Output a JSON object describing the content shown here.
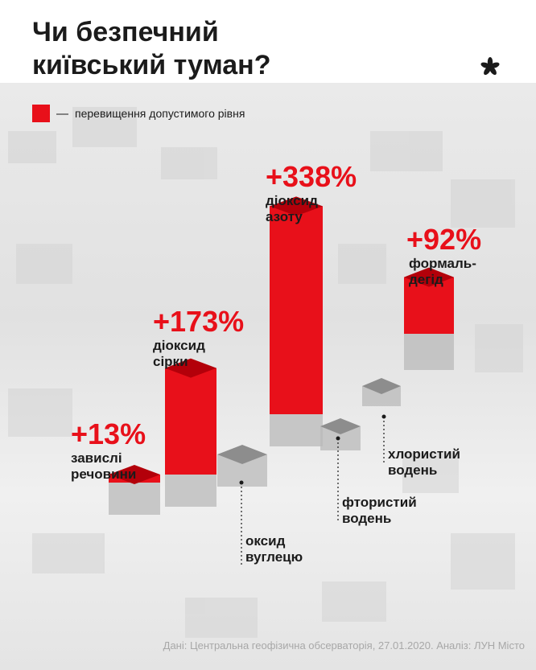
{
  "title_lines": [
    "Чи безпечний",
    "київський туман?"
  ],
  "legend": {
    "dash": "—",
    "label": "перевищення допустимого рівня",
    "color": "#e8101a"
  },
  "source": "Дані: Центральна геофізична обсерваторія, 27.01.2020. Аналіз: ЛУН Місто",
  "colors": {
    "exceed": "#e8101a",
    "text": "#1b1b1b",
    "base": "#b9b9b9"
  },
  "chart_data": {
    "type": "bar",
    "items": [
      {
        "value_label": "+13%",
        "value": 13,
        "name_lines": [
          "завислі",
          "речовини"
        ]
      },
      {
        "value_label": "+173%",
        "value": 173,
        "name_lines": [
          "діоксид",
          "сірки"
        ]
      },
      {
        "value_label": "",
        "value": 0,
        "name_lines": [
          "оксид",
          "вуглецю"
        ]
      },
      {
        "value_label": "+338%",
        "value": 338,
        "name_lines": [
          "діоксид",
          "азоту"
        ]
      },
      {
        "value_label": "",
        "value": 0,
        "name_lines": [
          "фтористий",
          "водень"
        ]
      },
      {
        "value_label": "",
        "value": 0,
        "name_lines": [
          "хлористий",
          "водень"
        ]
      },
      {
        "value_label": "+92%",
        "value": 92,
        "name_lines": [
          "формаль-",
          "дегід"
        ]
      }
    ]
  }
}
